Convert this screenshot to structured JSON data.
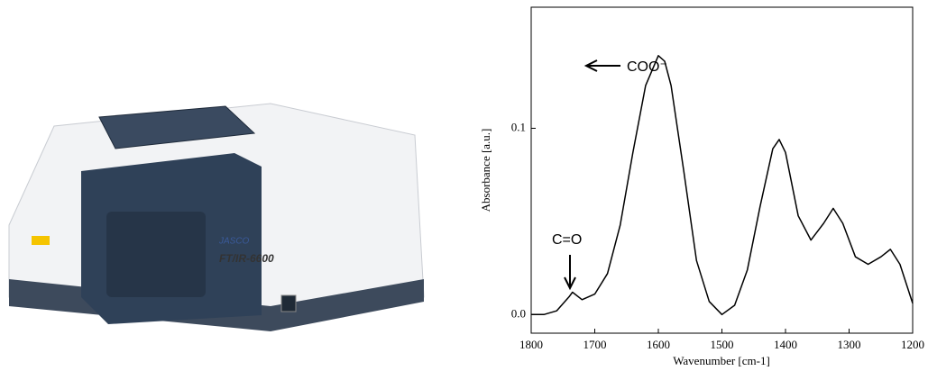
{
  "photo": {
    "brand": "JASCO",
    "model": "FT/IR-6600"
  },
  "chart_data": {
    "type": "line",
    "x_label": "Wavenumber [cm-1]",
    "y_label": "Absorbance [a.u.]",
    "annotations": [
      "C=O",
      "COO⁻"
    ],
    "x": [
      1800,
      1780,
      1760,
      1740,
      1735,
      1720,
      1700,
      1680,
      1660,
      1640,
      1620,
      1600,
      1590,
      1580,
      1560,
      1540,
      1520,
      1500,
      1480,
      1460,
      1440,
      1420,
      1410,
      1400,
      1380,
      1360,
      1340,
      1325,
      1310,
      1290,
      1270,
      1250,
      1235,
      1220,
      1200
    ],
    "values": [
      0,
      0,
      0.002,
      0.0097,
      0.012,
      0.008,
      0.011,
      0.022,
      0.048,
      0.087,
      0.123,
      0.139,
      0.136,
      0.123,
      0.077,
      0.029,
      0.007,
      0,
      0.005,
      0.024,
      0.058,
      0.089,
      0.094,
      0.087,
      0.053,
      0.04,
      0.049,
      0.057,
      0.049,
      0.031,
      0.027,
      0.031,
      0.035,
      0.027,
      0.006
    ],
    "color": "#000000",
    "xlim": [
      1800,
      1200
    ],
    "xticks": [
      1800,
      1700,
      1600,
      1500,
      1400,
      1300,
      1200
    ],
    "ylim": [
      -0.01,
      0.165
    ],
    "yticks": [
      {
        "value": 0,
        "label": "0.0"
      },
      0.1
    ]
  }
}
